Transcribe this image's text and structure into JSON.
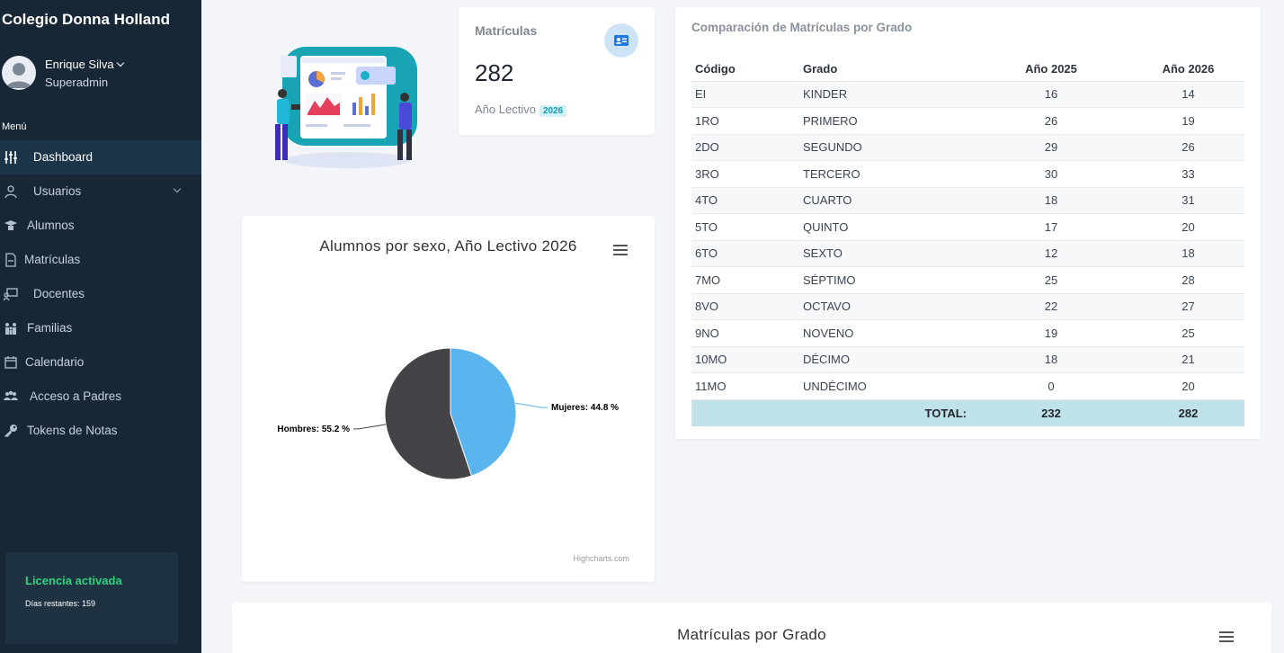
{
  "sidebar": {
    "brand": "Colegio Donna Holland",
    "user": {
      "name": "Enrique Silva",
      "role": "Superadmin"
    },
    "menu_title": "Menú",
    "items": [
      {
        "label": "Dashboard",
        "icon": "sliders-icon",
        "active": true
      },
      {
        "label": "Usuarios",
        "icon": "user-icon",
        "has_submenu": true
      },
      {
        "label": "Alumnos",
        "icon": "student-icon"
      },
      {
        "label": "Matrículas",
        "icon": "document-icon"
      },
      {
        "label": "Docentes",
        "icon": "teacher-icon"
      },
      {
        "label": "Familias",
        "icon": "family-icon"
      },
      {
        "label": "Calendario",
        "icon": "calendar-icon"
      },
      {
        "label": "Acceso a Padres",
        "icon": "users-icon"
      },
      {
        "label": "Tokens de Notas",
        "icon": "key-icon"
      }
    ],
    "license": {
      "title": "Licencia activada",
      "remaining": "Días restantes: 159"
    }
  },
  "stat": {
    "title": "Matrículas",
    "value": "282",
    "subtitle": "Año Lectivo",
    "chip": "2026",
    "icon": "id-card-icon"
  },
  "pie": {
    "title": "Alumnos por sexo, Año Lectivo 2026",
    "credits": "Highcharts.com"
  },
  "chart_data": {
    "type": "pie",
    "title": "Alumnos por sexo, Año Lectivo 2026",
    "slices": [
      {
        "name": "Mujeres",
        "value": 44.8,
        "label": "Mujeres: 44.8 %",
        "color": "#5ab4ee"
      },
      {
        "name": "Hombres",
        "value": 55.2,
        "label": "Hombres: 55.2 %",
        "color": "#434348"
      }
    ]
  },
  "table": {
    "title": "Comparación de Matrículas por Grado",
    "headers": [
      "Código",
      "Grado",
      "Año 2025",
      "Año 2026"
    ],
    "rows": [
      [
        "EI",
        "KINDER",
        "16",
        "14"
      ],
      [
        "1RO",
        "PRIMERO",
        "26",
        "19"
      ],
      [
        "2DO",
        "SEGUNDO",
        "29",
        "26"
      ],
      [
        "3RO",
        "TERCERO",
        "30",
        "33"
      ],
      [
        "4TO",
        "CUARTO",
        "18",
        "31"
      ],
      [
        "5TO",
        "QUINTO",
        "17",
        "20"
      ],
      [
        "6TO",
        "SEXTO",
        "12",
        "18"
      ],
      [
        "7MO",
        "SÉPTIMO",
        "25",
        "28"
      ],
      [
        "8VO",
        "OCTAVO",
        "22",
        "27"
      ],
      [
        "9NO",
        "NOVENO",
        "19",
        "25"
      ],
      [
        "10MO",
        "DÉCIMO",
        "18",
        "21"
      ],
      [
        "11MO",
        "UNDÉCIMO",
        "0",
        "20"
      ]
    ],
    "total": {
      "label": "TOTAL:",
      "y2025": "232",
      "y2026": "282"
    }
  },
  "bottom": {
    "title": "Matrículas por Grado"
  }
}
